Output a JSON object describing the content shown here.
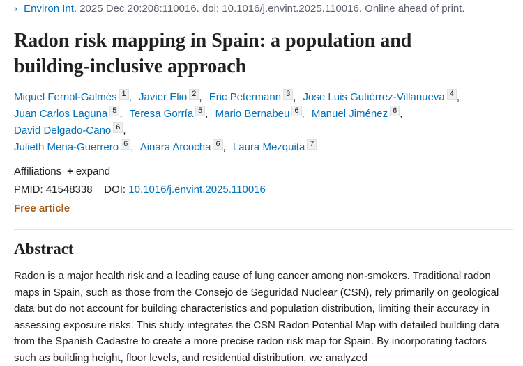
{
  "citation": {
    "journal": "Environ Int.",
    "details": "2025 Dec 20:208:110016. doi: 10.1016/j.envint.2025.110016. Online ahead of print."
  },
  "title": "Radon risk mapping in Spain: a population and building-inclusive approach",
  "authors": [
    {
      "name": "Miquel Ferriol-Galmés",
      "aff": "1",
      "sep": ","
    },
    {
      "name": "Javier Elio",
      "aff": "2",
      "sep": ","
    },
    {
      "name": "Eric Petermann",
      "aff": "3",
      "sep": ","
    },
    {
      "name": "Jose Luis Gutiérrez-Villanueva",
      "aff": "4",
      "sep": ","
    },
    {
      "name": "Juan Carlos Laguna",
      "aff": "5",
      "sep": ","
    },
    {
      "name": "Teresa Gorría",
      "aff": "5",
      "sep": ","
    },
    {
      "name": "Mario Bernabeu",
      "aff": "6",
      "sep": ","
    },
    {
      "name": "Manuel Jiménez",
      "aff": "6",
      "sep": ","
    },
    {
      "name": "David Delgado-Cano",
      "aff": "6",
      "sep": ","
    },
    {
      "name": "Julieth Mena-Guerrero",
      "aff": "6",
      "sep": ","
    },
    {
      "name": "Ainara Arcocha",
      "aff": "6",
      "sep": ","
    },
    {
      "name": "Laura Mezquita",
      "aff": "7"
    }
  ],
  "affiliations": {
    "label": "Affiliations",
    "toggle": "expand"
  },
  "ids": {
    "pmid_label": "PMID:",
    "pmid": "41548338",
    "doi_label": "DOI:",
    "doi": "10.1016/j.envint.2025.110016"
  },
  "free_article": "Free article",
  "abstract": {
    "heading": "Abstract",
    "text": "Radon is a major health risk and a leading cause of lung cancer among non-smokers. Traditional radon maps in Spain, such as those from the Consejo de Seguridad Nuclear (CSN), rely primarily on geological data but do not account for building characteristics and population distribution, limiting their accuracy in assessing exposure risks. This study integrates the CSN Radon Potential Map with detailed building data from the Spanish Cadastre to create a more precise radon risk map for Spain. By incorporating factors such as building height, floor levels, and residential distribution, we analyzed"
  }
}
